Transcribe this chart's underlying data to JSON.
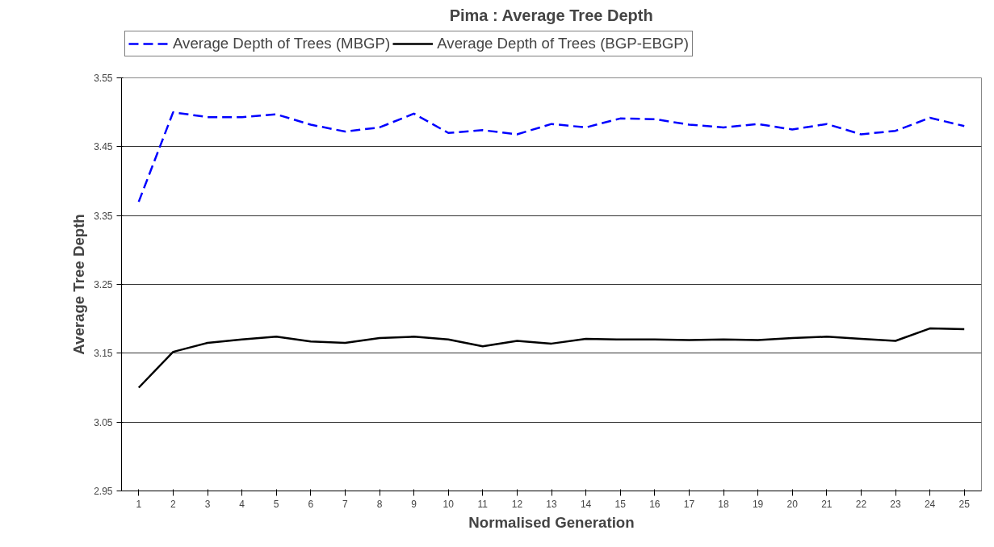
{
  "chart_data": {
    "type": "line",
    "title": "Pima : Average Tree Depth",
    "xlabel": "Normalised Generation",
    "ylabel": "Average Tree Depth",
    "x": [
      1,
      2,
      3,
      4,
      5,
      6,
      7,
      8,
      9,
      10,
      11,
      12,
      13,
      14,
      15,
      16,
      17,
      18,
      19,
      20,
      21,
      22,
      23,
      24,
      25
    ],
    "xlim": [
      0.5,
      25.5
    ],
    "xticks": [
      1,
      2,
      3,
      4,
      5,
      6,
      7,
      8,
      9,
      10,
      11,
      12,
      13,
      14,
      15,
      16,
      17,
      18,
      19,
      20,
      21,
      22,
      23,
      24,
      25
    ],
    "series": [
      {
        "name": "Average Depth of Trees (MBGP)",
        "color": "#0000ff",
        "line_style": "dashed",
        "values": [
          3.37,
          3.5,
          3.493,
          3.493,
          3.497,
          3.482,
          3.472,
          3.478,
          3.498,
          3.47,
          3.474,
          3.468,
          3.483,
          3.478,
          3.491,
          3.49,
          3.482,
          3.478,
          3.483,
          3.475,
          3.483,
          3.468,
          3.473,
          3.492,
          3.48
        ]
      },
      {
        "name": "Average Depth of Trees (BGP-EBGP)",
        "color": "#000000",
        "line_style": "solid",
        "values": [
          3.1,
          3.152,
          3.165,
          3.17,
          3.174,
          3.167,
          3.165,
          3.172,
          3.174,
          3.17,
          3.16,
          3.168,
          3.164,
          3.171,
          3.17,
          3.17,
          3.169,
          3.17,
          3.169,
          3.172,
          3.174,
          3.171,
          3.168,
          3.186,
          3.185
        ]
      }
    ],
    "ylim": [
      2.95,
      3.55
    ],
    "yticks": [
      2.95,
      3.05,
      3.15,
      3.25,
      3.35,
      3.45,
      3.55
    ],
    "grid": "y",
    "legend": "top"
  }
}
